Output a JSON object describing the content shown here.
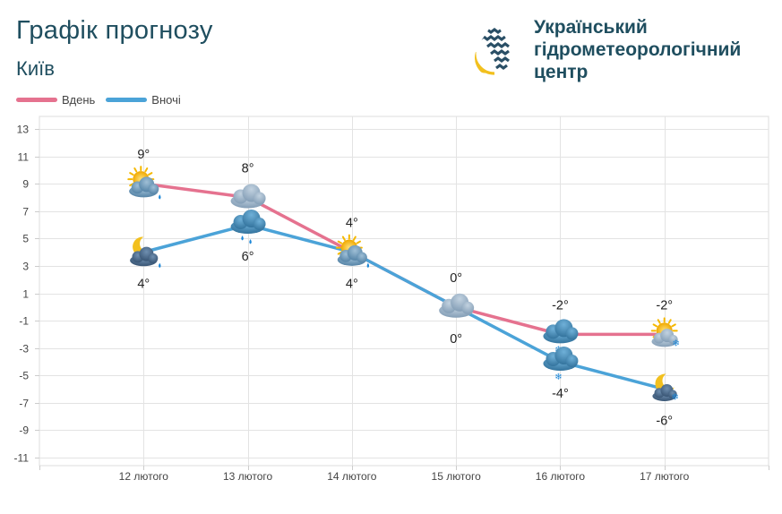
{
  "header": {
    "title": "Графік прогнозу",
    "city": "Київ"
  },
  "logo": {
    "line1": "Український",
    "line2": "гідрометеорологічний",
    "line3": "центр",
    "colors": {
      "navy": "#2a4f66",
      "yellow": "#f2c01e"
    }
  },
  "chart_data": {
    "type": "line",
    "categories": [
      "12 лютого",
      "13 лютого",
      "14 лютого",
      "15 лютого",
      "16 лютого",
      "17 лютого"
    ],
    "series": [
      {
        "name": "Вдень",
        "color": "#e5728f",
        "values": [
          9,
          8,
          4,
          0,
          -2,
          -2
        ],
        "labels": [
          "9°",
          "8°",
          "4°",
          "0°",
          "-2°",
          "-2°"
        ],
        "icons": [
          "sun-cloud-rain-icon",
          "cloud-icon",
          "sun-cloud-rain-icon",
          "cloud-icon",
          "cloud-snow-icon",
          "sun-cloud-snow-icon"
        ]
      },
      {
        "name": "Вночі",
        "color": "#4ba3d8",
        "values": [
          4,
          6,
          4,
          0,
          -4,
          -6
        ],
        "labels": [
          "4°",
          "6°",
          "4°",
          "0°",
          "-4°",
          "-6°"
        ],
        "icons": [
          "moon-cloud-rain-icon",
          "cloud-rain-icon",
          "sun-cloud-rain-icon",
          "cloud-snow-icon",
          "cloud-snow-icon",
          "moon-cloud-snow-icon"
        ]
      }
    ],
    "ylim": [
      -11,
      13
    ],
    "yticks": [
      13,
      11,
      9,
      7,
      5,
      3,
      1,
      -1,
      -3,
      -5,
      -7,
      -9,
      -11
    ],
    "grid": true,
    "legend": "top-left"
  }
}
